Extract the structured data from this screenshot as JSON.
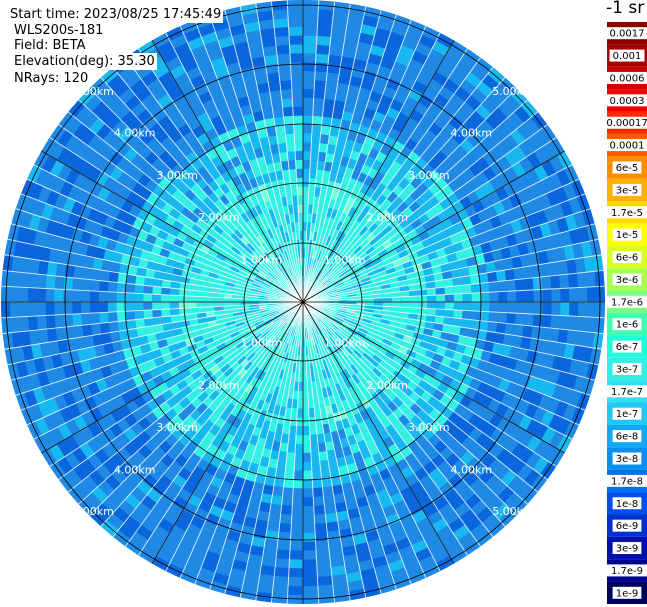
{
  "info": {
    "start_time": "Start time: 2023/08/25 17:45:49",
    "instrument": "WLS200s-181",
    "field": "Field: BETA",
    "elevation": "Elevation(deg): 35.30",
    "nrays": "NRays: 120"
  },
  "range_labels": [
    "1.00km",
    "2.00km",
    "3.00km",
    "4.00km",
    "5.00km"
  ],
  "legend": {
    "title": "-1 sr",
    "levels": [
      {
        "label": "0.0017",
        "color": "#8b0000"
      },
      {
        "label": "0.001",
        "color": "#a80000"
      },
      {
        "label": "0.0006",
        "color": "#cc0000"
      },
      {
        "label": "0.0003",
        "color": "#ee0000"
      },
      {
        "label": "0.00017",
        "color": "#ff2a00"
      },
      {
        "label": "0.0001",
        "color": "#ff5a00"
      },
      {
        "label": "6e-5",
        "color": "#ff8c00"
      },
      {
        "label": "3e-5",
        "color": "#ffb000"
      },
      {
        "label": "1.7e-5",
        "color": "#ffd800"
      },
      {
        "label": "1e-5",
        "color": "#ffff00"
      },
      {
        "label": "6e-6",
        "color": "#d8ff20"
      },
      {
        "label": "3e-6",
        "color": "#a8ff50"
      },
      {
        "label": "1.7e-6",
        "color": "#78ff80"
      },
      {
        "label": "1e-6",
        "color": "#40ffb0"
      },
      {
        "label": "6e-7",
        "color": "#20ffd8"
      },
      {
        "label": "3e-7",
        "color": "#30f0e8"
      },
      {
        "label": "1.7e-7",
        "color": "#30e0f0"
      },
      {
        "label": "1e-7",
        "color": "#20c8f8"
      },
      {
        "label": "6e-8",
        "color": "#10a8f8"
      },
      {
        "label": "3e-8",
        "color": "#0890f0"
      },
      {
        "label": "1.7e-8",
        "color": "#0070f0"
      },
      {
        "label": "1e-8",
        "color": "#0050e8"
      },
      {
        "label": "6e-9",
        "color": "#0030d0"
      },
      {
        "label": "3e-9",
        "color": "#0010b0"
      },
      {
        "label": "1.7e-9",
        "color": "#000090"
      },
      {
        "label": "1e-9",
        "color": "#000060"
      }
    ]
  },
  "colors": {
    "inner": "#35f0e4",
    "mid": "#18b8f0",
    "outer": "#1e8ae6",
    "deep": "#0a66dd",
    "grid": "#000000",
    "spokes": "#ffffff"
  }
}
